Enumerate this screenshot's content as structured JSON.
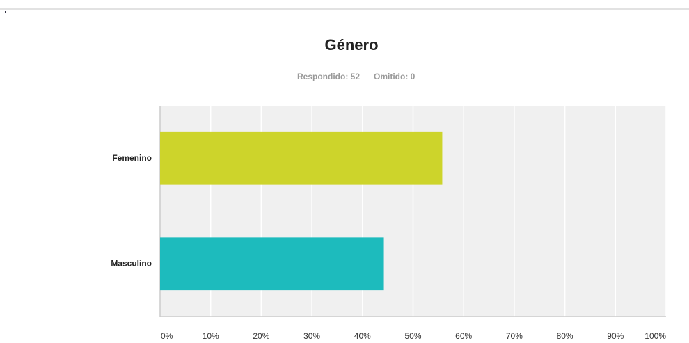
{
  "chart_data": {
    "type": "barh",
    "title": "Género",
    "subtitle": [
      "Respondido: 52",
      "Omitido: 0"
    ],
    "categories": [
      "Femenino",
      "Masculino"
    ],
    "values": [
      55.77,
      44.23
    ],
    "colors": [
      "#cdd42b",
      "#1dbbbd"
    ],
    "xlim": [
      0,
      100
    ],
    "xticks": [
      {
        "value": 0,
        "label": "0%"
      },
      {
        "value": 10,
        "label": "10%"
      },
      {
        "value": 20,
        "label": "20%"
      },
      {
        "value": 30,
        "label": "30%"
      },
      {
        "value": 40,
        "label": "40%"
      },
      {
        "value": 50,
        "label": "50%"
      },
      {
        "value": 60,
        "label": "60%"
      },
      {
        "value": 70,
        "label": "70%"
      },
      {
        "value": 80,
        "label": "80%"
      },
      {
        "value": 90,
        "label": "90%"
      },
      {
        "value": 100,
        "label": "100%"
      }
    ],
    "grid": true
  }
}
